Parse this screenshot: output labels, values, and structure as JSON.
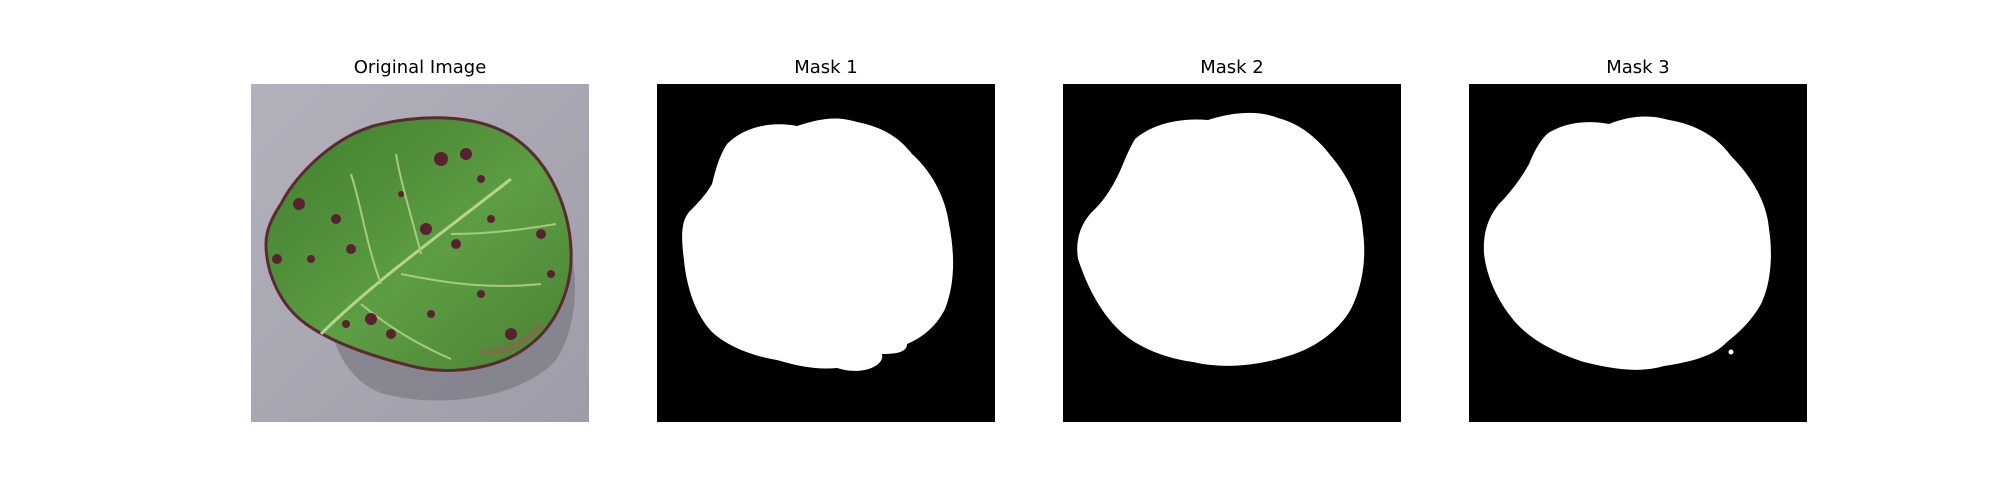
{
  "panels": [
    {
      "title": "Original Image",
      "kind": "photo"
    },
    {
      "title": "Mask 1",
      "kind": "mask"
    },
    {
      "title": "Mask 2",
      "kind": "mask"
    },
    {
      "title": "Mask 3",
      "kind": "mask"
    }
  ],
  "colors": {
    "background": "#ffffff",
    "mask_background": "#000000",
    "mask_foreground": "#ffffff",
    "leaf_green": "#4f8f3a",
    "leaf_spot": "#5a2230",
    "surface_gray": "#a9a9b3"
  }
}
